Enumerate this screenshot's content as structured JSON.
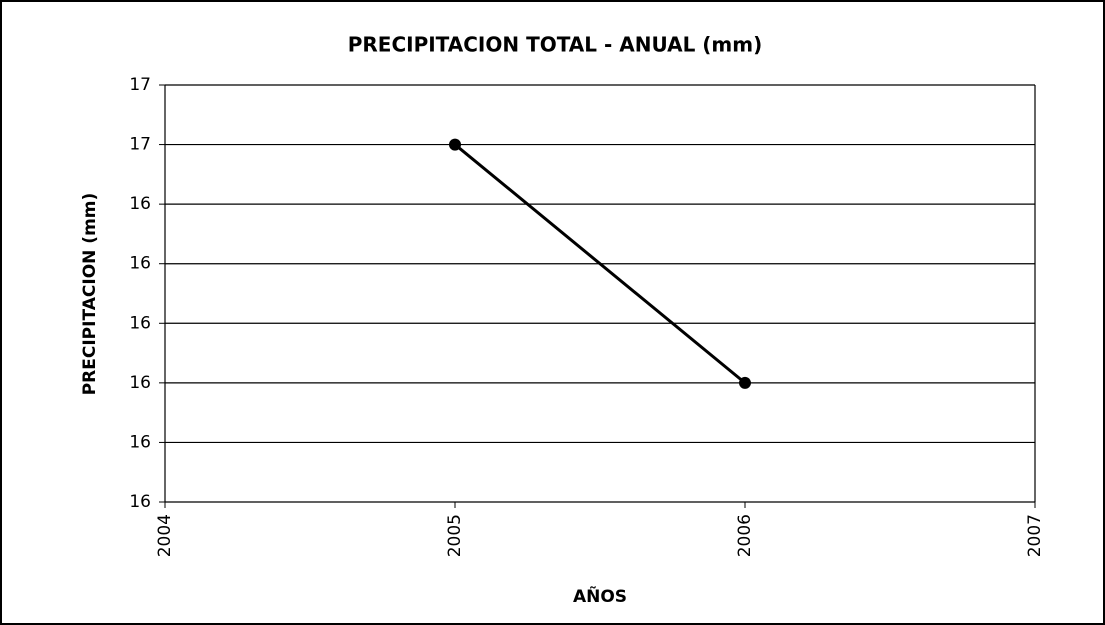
{
  "chart_data": {
    "type": "line",
    "title": "PRECIPITACION TOTAL - ANUAL (mm)",
    "x_label": "AÑOS",
    "y_label": "PRECIPITACION (mm)",
    "x": [
      2005,
      2006
    ],
    "values": [
      16.5,
      16.1
    ],
    "color": "#000000",
    "xlim": [
      2004,
      2007
    ],
    "xticks": [
      2004,
      2005,
      2006,
      2007
    ],
    "ylim": [
      15.9,
      16.6
    ],
    "yticks": [
      {
        "value": 15.9,
        "label": "16"
      },
      {
        "value": 16.0,
        "label": "16"
      },
      {
        "value": 16.1,
        "label": "16"
      },
      {
        "value": 16.2,
        "label": "16"
      },
      {
        "value": 16.3,
        "label": "16"
      },
      {
        "value": 16.4,
        "label": "16"
      },
      {
        "value": 16.5,
        "label": "17"
      },
      {
        "value": 16.6,
        "label": "17"
      }
    ],
    "grid": true
  }
}
